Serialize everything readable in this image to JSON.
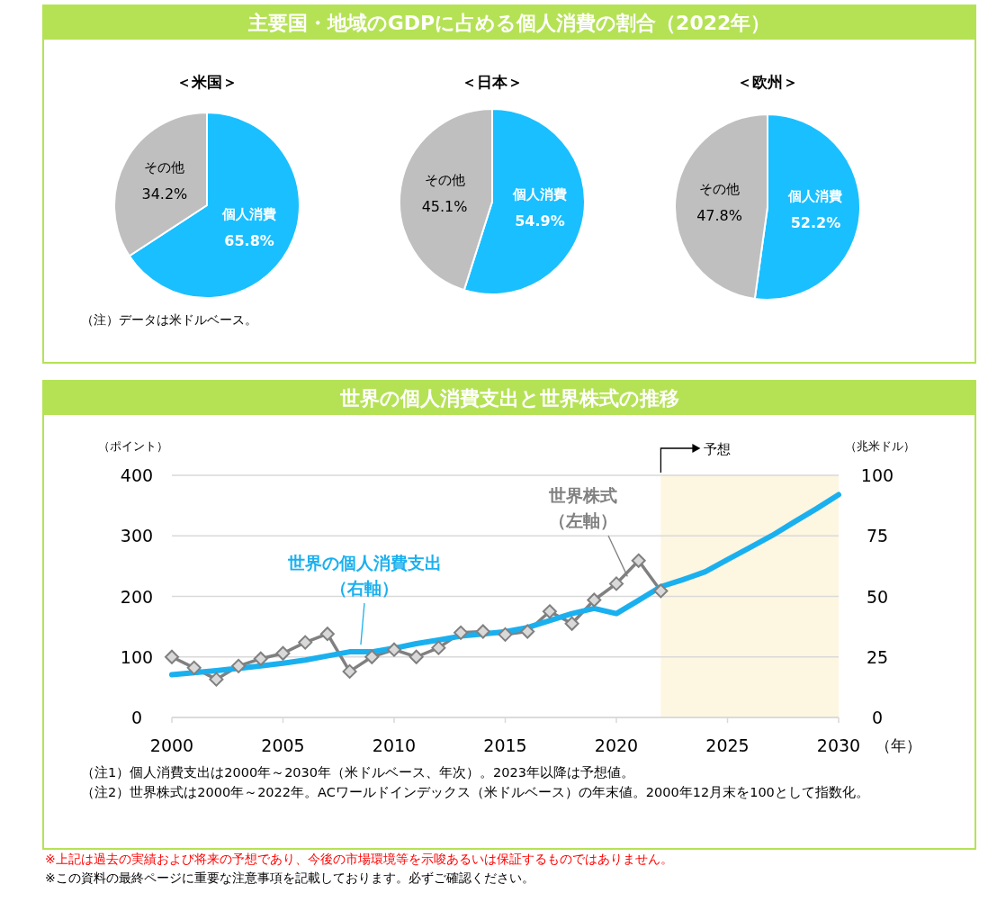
{
  "chart_data": [
    {
      "type": "pie",
      "title": "主要国・地域のGDPに占める個人消費の割合（2022年）",
      "subtitle": "＜米国＞",
      "categories": [
        "個人消費",
        "その他"
      ],
      "values": [
        65.8,
        34.2
      ],
      "colors": [
        "#1abfff",
        "#bfbfbf"
      ],
      "value_labels": [
        "65.8%",
        "34.2%"
      ]
    },
    {
      "type": "pie",
      "subtitle": "＜日本＞",
      "categories": [
        "個人消費",
        "その他"
      ],
      "values": [
        54.9,
        45.1
      ],
      "colors": [
        "#1abfff",
        "#bfbfbf"
      ],
      "value_labels": [
        "54.9%",
        "45.1%"
      ]
    },
    {
      "type": "pie",
      "subtitle": "＜欧州＞",
      "categories": [
        "個人消費",
        "その他"
      ],
      "values": [
        52.2,
        47.8
      ],
      "colors": [
        "#1abfff",
        "#bfbfbf"
      ],
      "value_labels": [
        "52.2%",
        "47.8%"
      ],
      "annotations": [
        "（注）データは米ドルベース。"
      ]
    },
    {
      "type": "line",
      "title": "世界の個人消費支出と世界株式の推移",
      "xlabel": "（年）",
      "ylabel": "（ポイント）",
      "y2label": "（兆米ドル）",
      "xlim": [
        2000,
        2030
      ],
      "xticks": [
        2000,
        2005,
        2010,
        2015,
        2020,
        2025,
        2030
      ],
      "ylim": [
        0,
        400
      ],
      "yticks": [
        0,
        100,
        200,
        300,
        400
      ],
      "y2lim": [
        0,
        100
      ],
      "y2ticks": [
        0,
        25,
        50,
        75,
        100
      ],
      "grid": "y",
      "marker": "diamond",
      "series": [
        {
          "name": "世界株式（左軸）",
          "color": "#808080",
          "x": [
            2000,
            2001,
            2002,
            2003,
            2004,
            2005,
            2006,
            2007,
            2008,
            2009,
            2010,
            2011,
            2012,
            2013,
            2014,
            2015,
            2016,
            2017,
            2018,
            2019,
            2020,
            2021,
            2022
          ],
          "values": [
            100,
            82,
            63,
            85,
            97,
            106,
            124,
            138,
            76,
            100,
            112,
            100,
            115,
            140,
            142,
            137,
            142,
            175,
            155,
            194,
            221,
            259,
            209
          ]
        },
        {
          "name": "世界の個人消費支出（右軸）",
          "color": "#1ab0ef",
          "axis": "y2",
          "marker": "none",
          "x": [
            2000,
            2001,
            2002,
            2003,
            2004,
            2005,
            2006,
            2007,
            2008,
            2009,
            2010,
            2011,
            2012,
            2013,
            2014,
            2015,
            2016,
            2017,
            2018,
            2019,
            2020,
            2021,
            2022,
            2023,
            2024,
            2025,
            2026,
            2027,
            2028,
            2029,
            2030
          ],
          "values": [
            17.7,
            18.5,
            19.3,
            20.3,
            21.3,
            22.4,
            23.7,
            25.4,
            27.1,
            27.1,
            28.6,
            30.5,
            32.0,
            33.6,
            34.5,
            35.4,
            37.1,
            40.0,
            42.9,
            45.0,
            42.9,
            48.4,
            54.0,
            56.9,
            60.2,
            65.2,
            70.1,
            75.1,
            80.7,
            86.2,
            92.0
          ]
        }
      ],
      "bands": [
        {
          "axis": "x",
          "from": 2022,
          "to": 2030,
          "label": "予想",
          "color": "#fdf6e1"
        }
      ],
      "annotations": [
        "（注1）個人消費支出は2000年～2030年（米ドルベース、年次）。2023年以降は予想値。",
        "（注2）世界株式は2000年～2022年。ACワールドインデックス（米ドルベース）の年末値。2000年12月末を100として指数化。",
        "※上記は過去の実績および将来の予想であり、今後の市場環境等を示唆あるいは保証するものではありません。",
        "※この資料の最終ページに重要な注意事項を記載しております。必ずご確認ください。"
      ]
    }
  ]
}
